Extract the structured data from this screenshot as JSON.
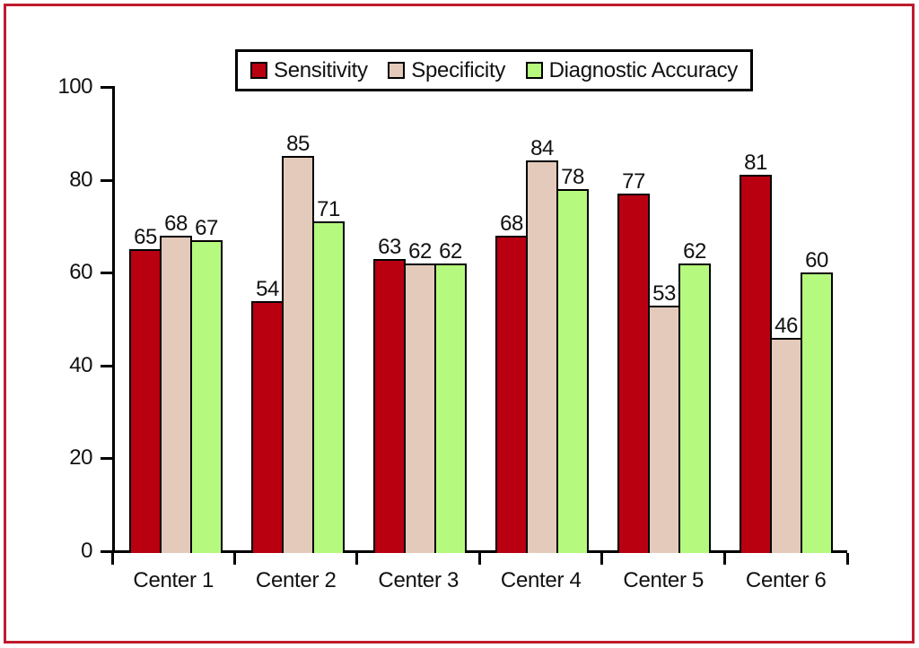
{
  "figure": {
    "frame_color": "#BE1B2C",
    "background_color": "#FFFFFF",
    "axis_color": "#000000",
    "text_color": "#111111"
  },
  "chart_data": {
    "type": "bar",
    "title": "",
    "xlabel": "",
    "ylabel": "",
    "categories": [
      "Center 1",
      "Center 2",
      "Center 3",
      "Center 4",
      "Center 5",
      "Center 6"
    ],
    "series": [
      {
        "name": "Sensitivity",
        "color": "#B90011",
        "values": [
          65,
          54,
          63,
          68,
          77,
          81
        ]
      },
      {
        "name": "Specificity",
        "color": "#E3CABA",
        "values": [
          68,
          85,
          62,
          84,
          53,
          46
        ]
      },
      {
        "name": "Diagnostic Accuracy",
        "color": "#B5FA7E",
        "values": [
          67,
          71,
          62,
          78,
          62,
          60
        ]
      }
    ],
    "ylim": [
      0,
      100
    ],
    "yticks": [
      0,
      20,
      40,
      60,
      80,
      100
    ],
    "grid": false,
    "bar_value_labels": true,
    "legend_position": "top-center"
  }
}
